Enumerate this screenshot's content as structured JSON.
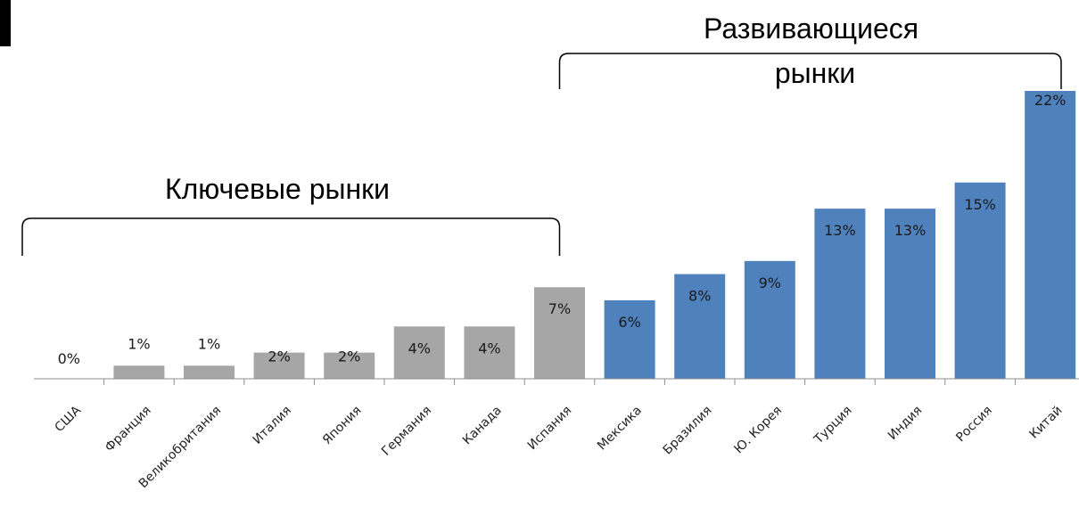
{
  "chart_data": {
    "type": "bar",
    "categories": [
      "США",
      "Франция",
      "Великобритания",
      "Италия",
      "Япония",
      "Германия",
      "Канада",
      "Испания",
      "Мексика",
      "Бразилия",
      "Ю. Корея",
      "Турция",
      "Индия",
      "Россия",
      "Китай"
    ],
    "values": [
      0,
      1,
      1,
      2,
      2,
      4,
      4,
      7,
      6,
      8,
      9,
      13,
      13,
      15,
      22
    ],
    "value_labels": [
      "0%",
      "1%",
      "1%",
      "2%",
      "2%",
      "4%",
      "4%",
      "7%",
      "6%",
      "8%",
      "9%",
      "13%",
      "13%",
      "15%",
      "22%"
    ],
    "unit": "%",
    "title": "",
    "xlabel": "",
    "ylabel": "",
    "ylim": [
      0,
      22
    ],
    "grid": false,
    "legend": "none",
    "groups": [
      {
        "name": "Ключевые рынки",
        "categories": [
          "США",
          "Франция",
          "Великобритания",
          "Италия",
          "Япония",
          "Германия",
          "Канада",
          "Испания"
        ],
        "color": "#a6a6a6"
      },
      {
        "name": "Развивающиеся рынки",
        "categories": [
          "Мексика",
          "Бразилия",
          "Ю. Корея",
          "Турция",
          "Индия",
          "Россия",
          "Китай"
        ],
        "color": "#4f81bd"
      }
    ],
    "annotations": [
      {
        "lines": [
          "Ключевые рынки"
        ]
      },
      {
        "lines": [
          "Развивающиеся",
          "рынки"
        ]
      }
    ]
  }
}
